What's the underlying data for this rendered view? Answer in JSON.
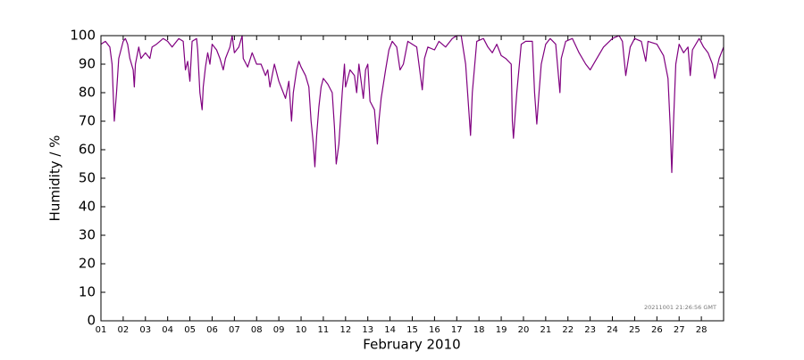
{
  "chart_data": {
    "type": "line",
    "xlabel": "February 2010",
    "ylabel": "Humidity / %",
    "annotation": "20211001 21:26:56 GMT",
    "xlim": [
      1,
      29
    ],
    "ylim": [
      0,
      100
    ],
    "xticks": [
      {
        "value": 1,
        "label": "01"
      },
      {
        "value": 2,
        "label": "02"
      },
      {
        "value": 3,
        "label": "03"
      },
      {
        "value": 4,
        "label": "04"
      },
      {
        "value": 5,
        "label": "05"
      },
      {
        "value": 6,
        "label": "06"
      },
      {
        "value": 7,
        "label": "07"
      },
      {
        "value": 8,
        "label": "08"
      },
      {
        "value": 9,
        "label": "09"
      },
      10,
      11,
      12,
      13,
      14,
      15,
      16,
      17,
      18,
      19,
      20,
      21,
      22,
      23,
      24,
      25,
      26,
      27,
      28
    ],
    "yticks": [
      0,
      10,
      20,
      30,
      40,
      50,
      60,
      70,
      80,
      90,
      100
    ],
    "grid": false,
    "series": [
      {
        "color": "#800080",
        "x": [
          1.0,
          1.2,
          1.4,
          1.5,
          1.55,
          1.6,
          1.7,
          1.8,
          2.0,
          2.1,
          2.2,
          2.3,
          2.45,
          2.5,
          2.55,
          2.7,
          2.8,
          3.0,
          3.2,
          3.3,
          3.5,
          3.8,
          4.0,
          4.2,
          4.5,
          4.7,
          4.8,
          4.9,
          5.0,
          5.1,
          5.3,
          5.35,
          5.45,
          5.55,
          5.6,
          5.7,
          5.8,
          5.9,
          6.0,
          6.2,
          6.35,
          6.5,
          6.6,
          6.8,
          6.9,
          7.0,
          7.2,
          7.35,
          7.4,
          7.6,
          7.8,
          8.0,
          8.2,
          8.4,
          8.5,
          8.6,
          8.8,
          9.0,
          9.2,
          9.3,
          9.45,
          9.57,
          9.65,
          9.8,
          9.9,
          10.0,
          10.2,
          10.35,
          10.45,
          10.55,
          10.62,
          10.7,
          10.8,
          10.9,
          11.0,
          11.2,
          11.4,
          11.5,
          11.58,
          11.7,
          11.85,
          11.95,
          12.0,
          12.2,
          12.4,
          12.5,
          12.6,
          12.7,
          12.8,
          12.9,
          13.0,
          13.1,
          13.3,
          13.43,
          13.5,
          13.6,
          13.8,
          13.95,
          14.1,
          14.3,
          14.45,
          14.6,
          14.8,
          15.0,
          15.2,
          15.45,
          15.55,
          15.7,
          16.0,
          16.2,
          16.5,
          16.8,
          17.0,
          17.2,
          17.4,
          17.62,
          17.7,
          17.9,
          18.2,
          18.4,
          18.6,
          18.8,
          19.0,
          19.2,
          19.45,
          19.5,
          19.55,
          19.7,
          19.9,
          20.1,
          20.4,
          20.5,
          20.6,
          20.7,
          20.8,
          21.0,
          21.2,
          21.45,
          21.64,
          21.7,
          21.9,
          22.2,
          22.5,
          22.8,
          23.0,
          23.3,
          23.6,
          24.0,
          24.3,
          24.45,
          24.6,
          24.8,
          25.0,
          25.3,
          25.5,
          25.6,
          26.0,
          26.3,
          26.5,
          26.6,
          26.67,
          26.75,
          26.85,
          27.0,
          27.2,
          27.4,
          27.5,
          27.6,
          27.9,
          28.1,
          28.3,
          28.5,
          28.6,
          28.8,
          29.0
        ],
        "values": [
          97,
          98,
          96,
          90,
          80,
          70,
          80,
          92,
          98,
          99,
          97,
          92,
          88,
          82,
          90,
          96,
          92,
          94,
          92,
          96,
          97,
          99,
          98,
          96,
          99,
          98,
          88,
          91,
          84,
          98,
          99,
          95,
          80,
          74,
          82,
          89,
          94,
          90,
          97,
          95,
          92,
          88,
          92,
          96,
          100,
          94,
          96,
          100,
          92,
          89,
          94,
          90,
          90,
          86,
          88,
          82,
          90,
          84,
          80,
          78,
          84,
          70,
          80,
          88,
          91,
          89,
          86,
          82,
          70,
          62,
          54,
          65,
          75,
          82,
          85,
          83,
          80,
          68,
          55,
          62,
          80,
          90,
          82,
          88,
          86,
          80,
          90,
          84,
          78,
          88,
          90,
          77,
          74,
          62,
          70,
          78,
          88,
          95,
          98,
          96,
          88,
          90,
          98,
          97,
          96,
          81,
          92,
          96,
          95,
          98,
          96,
          99,
          100,
          100,
          90,
          65,
          80,
          98,
          99,
          96,
          94,
          97,
          93,
          92,
          90,
          70,
          64,
          80,
          97,
          98,
          98,
          80,
          69,
          80,
          90,
          97,
          99,
          97,
          80,
          92,
          98,
          99,
          94,
          90,
          88,
          92,
          96,
          99,
          100,
          98,
          86,
          96,
          99,
          98,
          91,
          98,
          97,
          93,
          85,
          68,
          52,
          70,
          90,
          97,
          94,
          96,
          86,
          95,
          99,
          96,
          94,
          90,
          85,
          92,
          96
        ]
      }
    ]
  }
}
